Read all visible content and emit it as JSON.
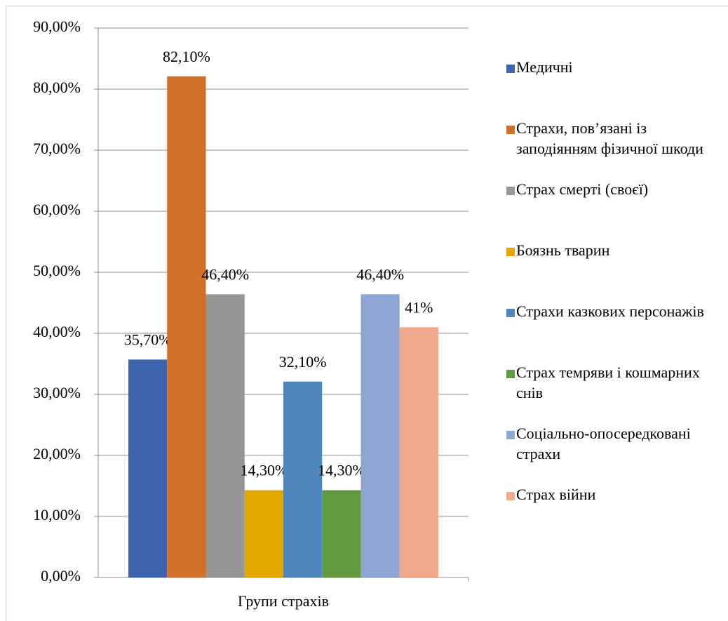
{
  "chart_data": {
    "type": "bar",
    "categories": [
      "Групи страхів"
    ],
    "series": [
      {
        "name": "Медичні",
        "color": "#3d64ad",
        "values": [
          35.7
        ],
        "value_labels": [
          "35,70%"
        ]
      },
      {
        "name": "Страхи, пов’язані із заподіянням фізичної шкоди",
        "color": "#d2702a",
        "values": [
          82.1
        ],
        "value_labels": [
          "82,10%"
        ]
      },
      {
        "name": "Страх смерті (своєї)",
        "color": "#969696",
        "values": [
          46.4
        ],
        "value_labels": [
          "46,40%"
        ]
      },
      {
        "name": "Боязнь тварин",
        "color": "#e2a800",
        "values": [
          14.3
        ],
        "value_labels": [
          "14,30%"
        ]
      },
      {
        "name": "Страхи казкових персонажів",
        "color": "#4f87bd",
        "values": [
          32.1
        ],
        "value_labels": [
          "32,10%"
        ]
      },
      {
        "name": "Страх темряви і кошмарних снів",
        "color": "#639a3f",
        "values": [
          14.3
        ],
        "value_labels": [
          "14,30%"
        ]
      },
      {
        "name": "Соціально-опосередковані страхи",
        "color": "#8fa6d4",
        "values": [
          46.4
        ],
        "value_labels": [
          "46,40%"
        ]
      },
      {
        "name": "Страх війни",
        "color": "#f0a98a",
        "values": [
          41
        ],
        "value_labels": [
          "41%"
        ]
      }
    ],
    "ylim": [
      0,
      90
    ],
    "yticks": [
      {
        "value": 0,
        "label": "0,00%"
      },
      {
        "value": 10,
        "label": "10,00%"
      },
      {
        "value": 20,
        "label": "20,00%"
      },
      {
        "value": 30,
        "label": "30,00%"
      },
      {
        "value": 40,
        "label": "40,00%"
      },
      {
        "value": 50,
        "label": "50,00%"
      },
      {
        "value": 60,
        "label": "60,00%"
      },
      {
        "value": 70,
        "label": "70,00%"
      },
      {
        "value": 80,
        "label": "80,00%"
      },
      {
        "value": 90,
        "label": "90,00%"
      }
    ],
    "grid": true,
    "legend": "right"
  }
}
